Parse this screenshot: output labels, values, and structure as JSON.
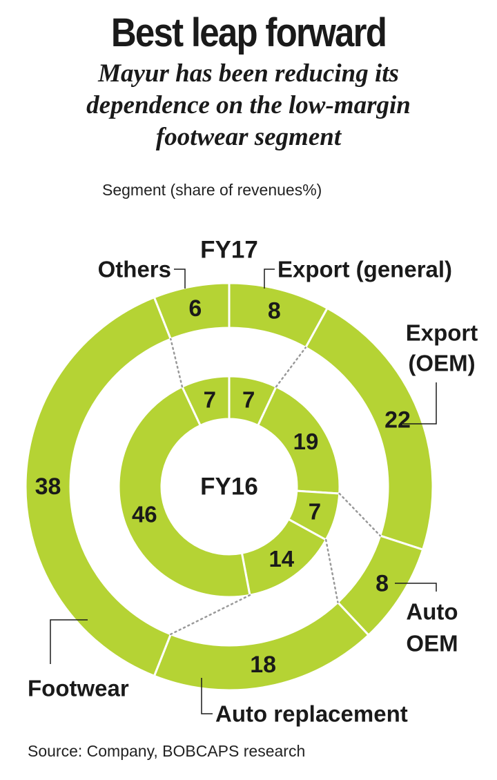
{
  "title": "Best leap forward",
  "subtitle_lines": [
    "Mayur has been reducing its",
    "dependence on the low-margin",
    "footwear segment"
  ],
  "caption": "Segment (share of revenues%)",
  "source": "Source: Company, BOBCAPS research",
  "colors": {
    "ring": "#b5d334",
    "divider": "#ffffff",
    "text": "#1a1a1a",
    "leader": "#999999"
  },
  "chart_data": {
    "type": "pie",
    "variant": "nested-donut",
    "segments": [
      "Export (general)",
      "Export (OEM)",
      "Auto OEM",
      "Auto replacement",
      "Footwear",
      "Others"
    ],
    "callout_lines": {
      "Export (general)": [
        "Export (general)"
      ],
      "Export (OEM)": [
        "Export",
        "(OEM)"
      ],
      "Auto OEM": [
        "Auto",
        "OEM"
      ],
      "Auto replacement": [
        "Auto replacement"
      ],
      "Footwear": [
        "Footwear"
      ],
      "Others": [
        "Others"
      ]
    },
    "series": [
      {
        "name": "FY17",
        "ring": "outer",
        "values": [
          8,
          22,
          8,
          18,
          38,
          6
        ]
      },
      {
        "name": "FY16",
        "ring": "inner",
        "values": [
          7,
          19,
          7,
          14,
          46,
          7
        ]
      }
    ]
  }
}
